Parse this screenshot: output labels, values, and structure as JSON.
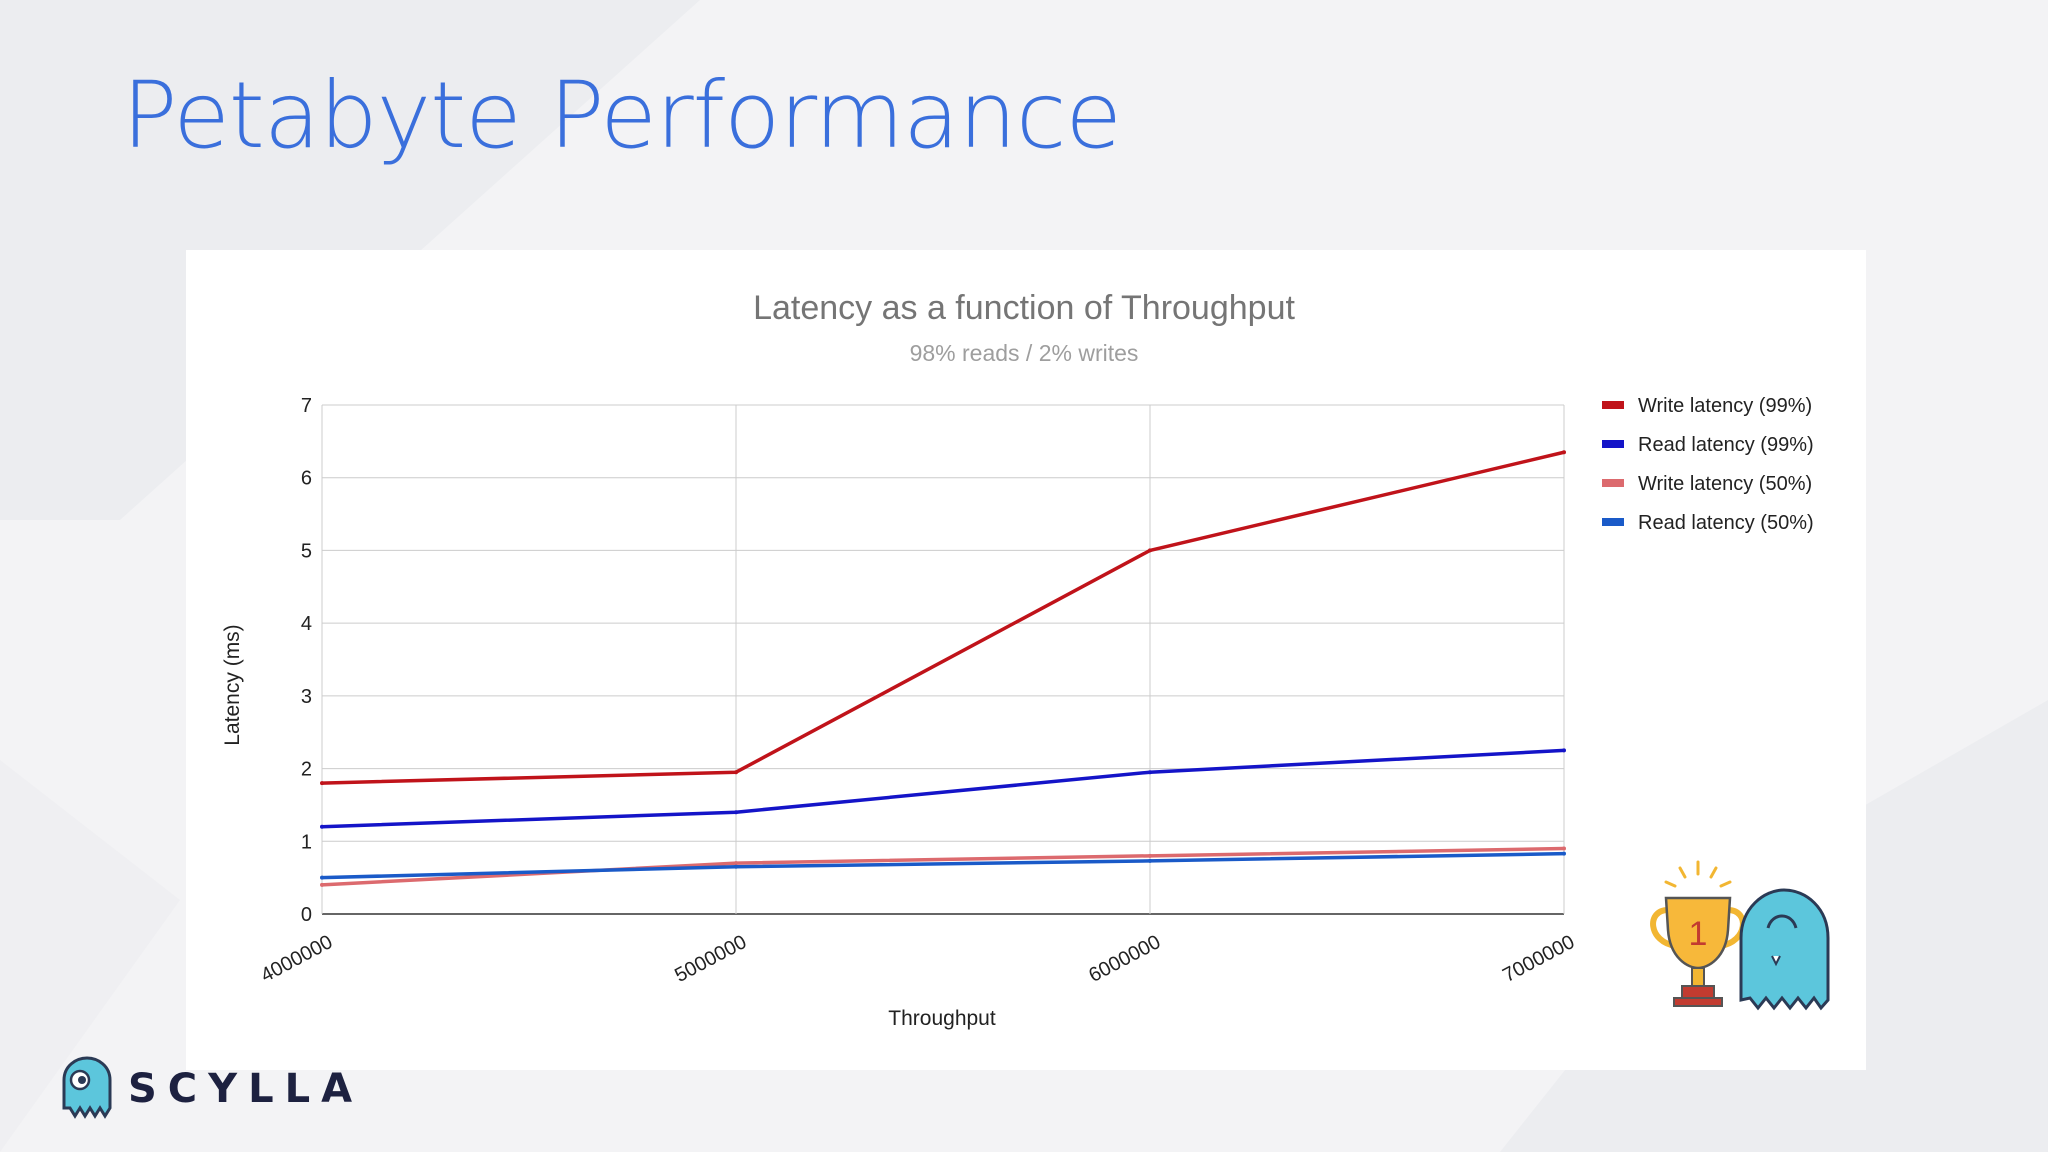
{
  "slide": {
    "title": "Petabyte Performance"
  },
  "brand": {
    "name": "SCYLLA",
    "accent": "#3a6fdc",
    "mascot_color": "#5cc6dc"
  },
  "award": {
    "rank": "1"
  },
  "chart_data": {
    "type": "line",
    "title": "Latency as a function of Throughput",
    "subtitle": "98% reads / 2% writes",
    "xlabel": "Throughput",
    "ylabel": "Latency (ms)",
    "x": [
      4000000,
      5000000,
      6000000,
      7000000
    ],
    "x_tick_labels": [
      "4000000",
      "5000000",
      "6000000",
      "7000000"
    ],
    "ylim": [
      0,
      7
    ],
    "y_ticks": [
      0,
      1,
      2,
      3,
      4,
      5,
      6,
      7
    ],
    "grid": true,
    "legend_position": "right",
    "series": [
      {
        "name": "Write latency (99%)",
        "color": "#c0131a",
        "values": [
          1.8,
          1.95,
          5.0,
          6.35
        ]
      },
      {
        "name": "Read latency (99%)",
        "color": "#1414c8",
        "values": [
          1.2,
          1.4,
          1.95,
          2.25
        ]
      },
      {
        "name": "Write latency (50%)",
        "color": "#dc6a6e",
        "values": [
          0.4,
          0.7,
          0.8,
          0.9
        ]
      },
      {
        "name": "Read latency (50%)",
        "color": "#1a5ac8",
        "values": [
          0.5,
          0.65,
          0.73,
          0.83
        ]
      }
    ]
  }
}
